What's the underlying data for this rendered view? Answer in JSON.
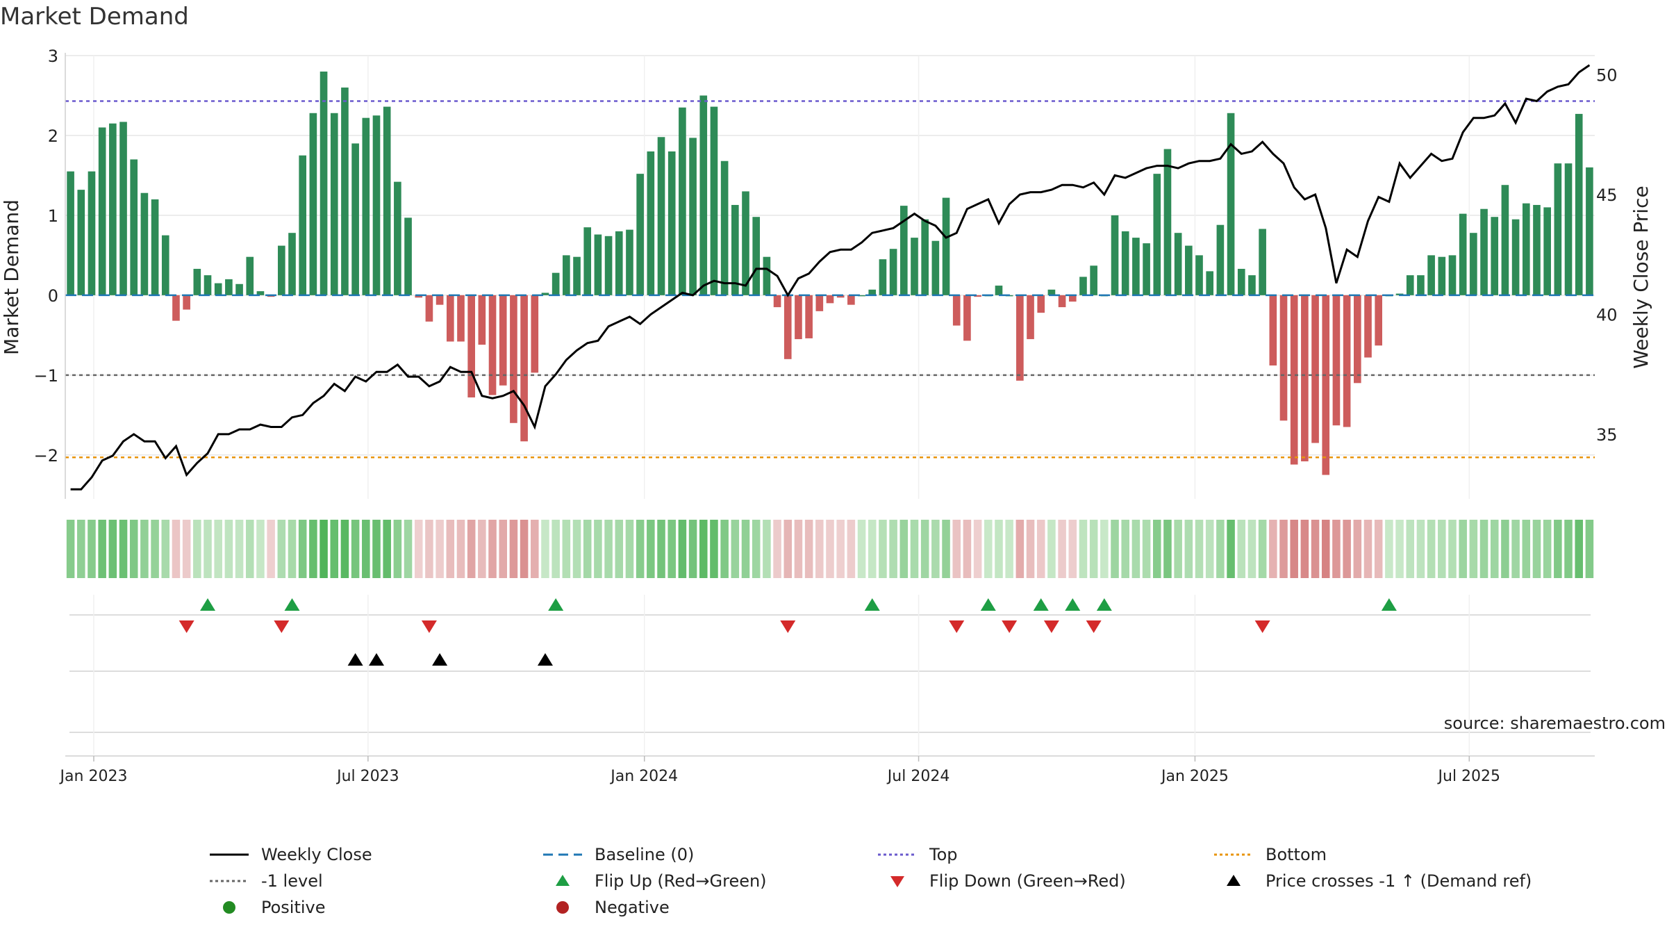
{
  "title": "Market Demand",
  "source": "source: sharemaestro.com",
  "chart_data": {
    "type": "bar",
    "title": "Market Demand",
    "ylabel_left": "Market Demand",
    "ylabel_right": "Weekly Close Price",
    "ylim_left": [
      -2.55,
      3.0
    ],
    "ylim_right": [
      32.3,
      50.8
    ],
    "yticks_left": [
      3,
      2,
      1,
      0,
      -1,
      -2
    ],
    "ytick_labels_left": [
      "3",
      "2",
      "1",
      "0",
      "−1",
      "−2"
    ],
    "yticks_right": [
      50,
      45,
      40,
      35
    ],
    "ytick_labels_right": [
      "50",
      "45",
      "40",
      "35"
    ],
    "xticks": [
      {
        "label": "Jan 2023",
        "index": 2.2
      },
      {
        "label": "Jul 2023",
        "index": 28.2
      },
      {
        "label": "Jan 2024",
        "index": 54.4
      },
      {
        "label": "Jul 2024",
        "index": 80.4
      },
      {
        "label": "Jan 2025",
        "index": 106.6
      },
      {
        "label": "Jul 2025",
        "index": 132.6
      }
    ],
    "demand": [
      1.55,
      1.32,
      1.55,
      2.1,
      2.15,
      2.17,
      1.7,
      1.28,
      1.2,
      0.75,
      -0.32,
      -0.18,
      0.33,
      0.25,
      0.15,
      0.2,
      0.14,
      0.48,
      0.05,
      -0.02,
      0.62,
      0.78,
      1.75,
      2.28,
      2.8,
      2.28,
      2.6,
      1.9,
      2.22,
      2.25,
      2.36,
      1.42,
      0.97,
      -0.03,
      -0.33,
      -0.12,
      -0.58,
      -0.58,
      -1.28,
      -0.62,
      -1.25,
      -1.13,
      -1.6,
      -1.83,
      -0.97,
      0.03,
      0.28,
      0.5,
      0.48,
      0.85,
      0.76,
      0.74,
      0.8,
      0.82,
      1.52,
      1.8,
      1.98,
      1.8,
      2.35,
      1.97,
      2.5,
      2.36,
      1.68,
      1.13,
      1.3,
      0.98,
      0.48,
      -0.15,
      -0.8,
      -0.55,
      -0.54,
      -0.2,
      -0.1,
      -0.03,
      -0.12,
      0.0,
      0.07,
      0.45,
      0.58,
      1.12,
      0.72,
      0.95,
      0.68,
      1.22,
      -0.38,
      -0.57,
      -0.02,
      0.0,
      0.12,
      0.0,
      -1.07,
      -0.55,
      -0.22,
      0.07,
      -0.15,
      -0.08,
      0.23,
      0.37,
      0.0,
      1.0,
      0.8,
      0.72,
      0.65,
      1.52,
      1.83,
      0.78,
      0.62,
      0.5,
      0.3,
      0.88,
      2.28,
      0.33,
      0.25,
      0.83,
      -0.88,
      -1.57,
      -2.12,
      -2.08,
      -1.85,
      -2.25,
      -1.63,
      -1.65,
      -1.1,
      -0.78,
      -0.63,
      0.0,
      0.02,
      0.25,
      0.25,
      0.5,
      0.48,
      0.5,
      1.02,
      0.78,
      1.08,
      0.98,
      1.38,
      0.95,
      1.15,
      1.13,
      1.1,
      1.65,
      1.65,
      2.27,
      1.6
    ],
    "price": [
      32.7,
      32.7,
      33.2,
      33.9,
      34.1,
      34.7,
      35.0,
      34.7,
      34.7,
      34.0,
      34.5,
      33.3,
      33.8,
      34.2,
      35.0,
      35.0,
      35.2,
      35.2,
      35.4,
      35.3,
      35.3,
      35.7,
      35.8,
      36.3,
      36.6,
      37.1,
      36.8,
      37.4,
      37.2,
      37.6,
      37.6,
      37.9,
      37.4,
      37.4,
      37.0,
      37.2,
      37.8,
      37.6,
      37.6,
      36.6,
      36.5,
      36.6,
      36.8,
      36.2,
      35.3,
      37.0,
      37.5,
      38.1,
      38.5,
      38.8,
      38.9,
      39.5,
      39.7,
      39.9,
      39.6,
      40.0,
      40.3,
      40.6,
      40.9,
      40.8,
      41.2,
      41.4,
      41.3,
      41.3,
      41.2,
      41.9,
      41.9,
      41.6,
      40.8,
      41.5,
      41.7,
      42.2,
      42.6,
      42.7,
      42.7,
      43.0,
      43.4,
      43.5,
      43.6,
      43.9,
      44.2,
      43.9,
      43.7,
      43.2,
      43.4,
      44.4,
      44.6,
      44.8,
      43.8,
      44.6,
      45.0,
      45.1,
      45.1,
      45.2,
      45.4,
      45.4,
      45.3,
      45.5,
      45.0,
      45.8,
      45.7,
      45.9,
      46.1,
      46.2,
      46.2,
      46.1,
      46.3,
      46.4,
      46.4,
      46.5,
      47.1,
      46.7,
      46.8,
      47.2,
      46.7,
      46.3,
      45.3,
      44.8,
      45.0,
      43.6,
      41.3,
      42.7,
      42.4,
      43.9,
      44.9,
      44.7,
      46.3,
      45.7,
      46.2,
      46.7,
      46.4,
      46.5,
      47.6,
      48.2,
      48.2,
      48.3,
      48.8,
      48.0,
      49.0,
      48.9,
      49.3,
      49.5,
      49.6,
      50.1,
      50.4
    ],
    "reference_lines": [
      {
        "name": "Top",
        "value": 2.43,
        "color": "#6a5acd"
      },
      {
        "name": "-1 level",
        "value": -1.0,
        "color": "#666666"
      },
      {
        "name": "Bottom",
        "value": -2.03,
        "color": "#e8940c"
      },
      {
        "name": "Baseline (0)",
        "value": 0.0,
        "color": "#1f77b4"
      }
    ],
    "flip_up_indices": [
      13,
      21,
      46,
      76,
      87,
      92,
      95,
      98,
      125
    ],
    "flip_down_indices": [
      11,
      20,
      34,
      68,
      84,
      89,
      93,
      97,
      113
    ],
    "price_cross_indices": [
      27,
      29,
      35,
      45
    ]
  },
  "colors": {
    "positive_bar": "#2e8b57",
    "negative_bar": "#cd5c5c",
    "price_line": "#000000",
    "flip_up": "#1e9e44",
    "flip_down": "#d42a2a",
    "cross": "#000000",
    "positive_dot": "#228b22",
    "negative_dot": "#b22222",
    "grid": "#e6e6e6"
  },
  "legend": [
    {
      "label": "Weekly Close",
      "icon": "solid-line-icon",
      "color": "#000000"
    },
    {
      "label": "Baseline (0)",
      "icon": "dashed-line-icon",
      "color": "#1f77b4"
    },
    {
      "label": "Top",
      "icon": "dotted-line-icon",
      "color": "#6a5acd"
    },
    {
      "label": "Bottom",
      "icon": "dotted-line-icon",
      "color": "#e8940c"
    },
    {
      "label": "-1 level",
      "icon": "dotted-line-icon",
      "color": "#666666"
    },
    {
      "label": "Flip Up (Red→Green)",
      "icon": "triangle-up-icon",
      "color": "#1e9e44"
    },
    {
      "label": "Flip Down (Green→Red)",
      "icon": "triangle-down-icon",
      "color": "#d42a2a"
    },
    {
      "label": "Price crosses -1 ↑ (Demand ref)",
      "icon": "triangle-up-icon",
      "color": "#000000"
    },
    {
      "label": "Positive",
      "icon": "circle-icon",
      "color": "#228b22"
    },
    {
      "label": "Negative",
      "icon": "circle-icon",
      "color": "#b22222"
    }
  ]
}
